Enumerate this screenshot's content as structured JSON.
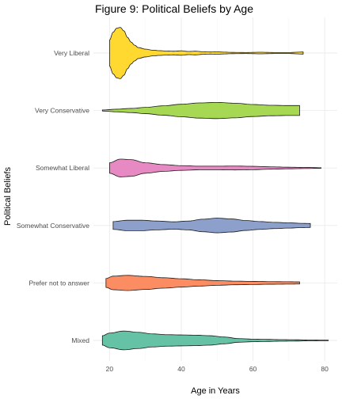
{
  "chart_data": {
    "type": "violin",
    "title": "Figure 9: Political Beliefs by Age",
    "xlabel": "Age in Years",
    "ylabel": "Political Beliefs",
    "xlim": [
      15.5,
      83.5
    ],
    "x_ticks": [
      20,
      40,
      60,
      80
    ],
    "grid": true,
    "legend": "none",
    "categories": [
      "Mixed",
      "Prefer not to answer",
      "Somewhat Conservative",
      "Somewhat Liberal",
      "Very Conservative",
      "Very Liberal"
    ],
    "series": [
      {
        "category": "Mixed",
        "color": "#66c2a5",
        "range": [
          18,
          81
        ],
        "density": [
          [
            18,
            0.18
          ],
          [
            20,
            0.28
          ],
          [
            24,
            0.36
          ],
          [
            28,
            0.31
          ],
          [
            32,
            0.25
          ],
          [
            36,
            0.22
          ],
          [
            40,
            0.21
          ],
          [
            44,
            0.2
          ],
          [
            48,
            0.18
          ],
          [
            52,
            0.13
          ],
          [
            56,
            0.07
          ],
          [
            60,
            0.05
          ],
          [
            64,
            0.04
          ],
          [
            68,
            0.03
          ],
          [
            72,
            0.025
          ],
          [
            76,
            0.015
          ],
          [
            81,
            0.01
          ]
        ]
      },
      {
        "category": "Prefer not to answer",
        "color": "#fc8d62",
        "range": [
          19,
          73
        ],
        "density": [
          [
            19,
            0.17
          ],
          [
            21,
            0.26
          ],
          [
            25,
            0.29
          ],
          [
            30,
            0.25
          ],
          [
            35,
            0.2
          ],
          [
            40,
            0.16
          ],
          [
            45,
            0.12
          ],
          [
            50,
            0.09
          ],
          [
            55,
            0.07
          ],
          [
            60,
            0.06
          ],
          [
            65,
            0.05
          ],
          [
            70,
            0.045
          ],
          [
            73,
            0.04
          ]
        ]
      },
      {
        "category": "Somewhat Conservative",
        "color": "#8da0cb",
        "range": [
          21,
          76
        ],
        "density": [
          [
            21,
            0.15
          ],
          [
            25,
            0.2
          ],
          [
            29,
            0.2
          ],
          [
            33,
            0.17
          ],
          [
            38,
            0.14
          ],
          [
            42,
            0.17
          ],
          [
            46,
            0.24
          ],
          [
            50,
            0.28
          ],
          [
            54,
            0.25
          ],
          [
            58,
            0.19
          ],
          [
            62,
            0.15
          ],
          [
            66,
            0.12
          ],
          [
            70,
            0.1
          ],
          [
            74,
            0.08
          ],
          [
            76,
            0.075
          ]
        ]
      },
      {
        "category": "Somewhat Liberal",
        "color": "#e78ac3",
        "range": [
          20,
          79
        ],
        "density": [
          [
            20,
            0.2
          ],
          [
            23,
            0.34
          ],
          [
            26,
            0.32
          ],
          [
            30,
            0.2
          ],
          [
            35,
            0.13
          ],
          [
            40,
            0.09
          ],
          [
            45,
            0.07
          ],
          [
            50,
            0.07
          ],
          [
            55,
            0.075
          ],
          [
            60,
            0.065
          ],
          [
            65,
            0.045
          ],
          [
            70,
            0.03
          ],
          [
            75,
            0.02
          ],
          [
            79,
            0.01
          ]
        ]
      },
      {
        "category": "Very Conservative",
        "color": "#a6d854",
        "range": [
          18,
          73
        ],
        "density": [
          [
            18,
            0.02
          ],
          [
            22,
            0.05
          ],
          [
            26,
            0.08
          ],
          [
            30,
            0.12
          ],
          [
            35,
            0.18
          ],
          [
            40,
            0.24
          ],
          [
            45,
            0.29
          ],
          [
            50,
            0.31
          ],
          [
            55,
            0.28
          ],
          [
            60,
            0.23
          ],
          [
            65,
            0.2
          ],
          [
            70,
            0.19
          ],
          [
            73,
            0.19
          ]
        ]
      },
      {
        "category": "Very Liberal",
        "color": "#ffd92f",
        "range": [
          20,
          74
        ],
        "density": [
          [
            20,
            0.5
          ],
          [
            21,
            0.8
          ],
          [
            22,
            0.95
          ],
          [
            23,
            0.98
          ],
          [
            24,
            0.85
          ],
          [
            25,
            0.6
          ],
          [
            26,
            0.42
          ],
          [
            27,
            0.3
          ],
          [
            28,
            0.21
          ],
          [
            30,
            0.15
          ],
          [
            32,
            0.11
          ],
          [
            34,
            0.09
          ],
          [
            36,
            0.075
          ],
          [
            38,
            0.07
          ],
          [
            40,
            0.085
          ],
          [
            42,
            0.06
          ],
          [
            44,
            0.07
          ],
          [
            46,
            0.05
          ],
          [
            48,
            0.04
          ],
          [
            50,
            0.045
          ],
          [
            52,
            0.035
          ],
          [
            54,
            0.025
          ],
          [
            58,
            0.02
          ],
          [
            62,
            0.03
          ],
          [
            66,
            0.02
          ],
          [
            70,
            0.02
          ],
          [
            74,
            0.04
          ]
        ]
      }
    ]
  }
}
